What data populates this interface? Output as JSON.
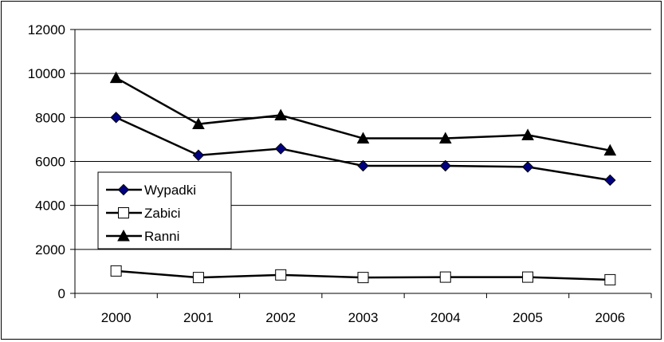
{
  "chart_data": {
    "type": "line",
    "categories": [
      "2000",
      "2001",
      "2002",
      "2003",
      "2004",
      "2005",
      "2006"
    ],
    "ylim": [
      0,
      12000
    ],
    "yticks": [
      0,
      2000,
      4000,
      6000,
      8000,
      10000,
      12000
    ],
    "grid": true,
    "legend_position": "left",
    "series": [
      {
        "name": "Wypadki",
        "marker": "diamond",
        "values": [
          8000,
          6280,
          6580,
          5800,
          5800,
          5750,
          5150
        ],
        "color": "#000080",
        "line_color": "#000000"
      },
      {
        "name": "Zabici",
        "marker": "square",
        "values": [
          1020,
          720,
          840,
          720,
          740,
          740,
          620
        ],
        "color": "#ffffff",
        "line_color": "#000000"
      },
      {
        "name": "Ranni",
        "marker": "triangle",
        "values": [
          9800,
          7700,
          8100,
          7050,
          7050,
          7200,
          6500
        ],
        "color": "#000000",
        "line_color": "#000000"
      }
    ]
  }
}
